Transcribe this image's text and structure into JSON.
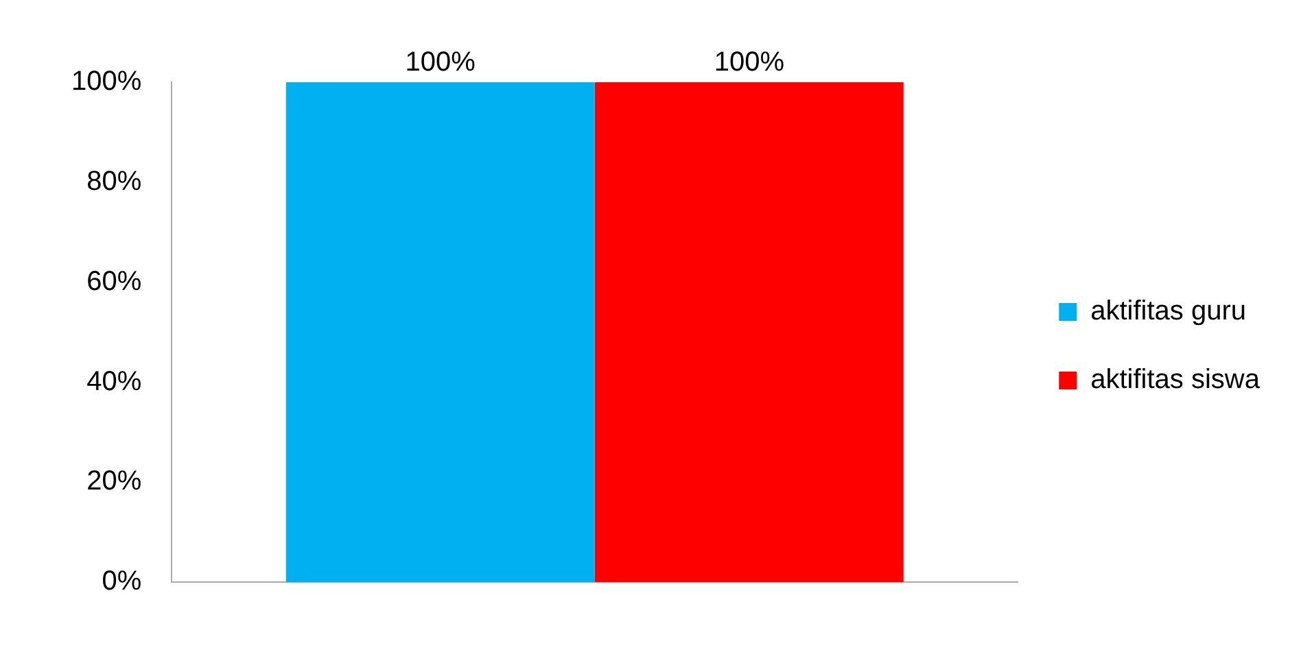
{
  "chart_data": {
    "type": "bar",
    "categories": [
      null
    ],
    "series": [
      {
        "name": "aktifitas guru",
        "color": "#00b0f0",
        "values": [
          100
        ],
        "value_labels": [
          "100%"
        ]
      },
      {
        "name": "aktifitas siswa",
        "color": "#ff0000",
        "values": [
          100
        ],
        "value_labels": [
          "100%"
        ]
      }
    ],
    "ylim": [
      0,
      100
    ],
    "yticks": [
      {
        "value": 0,
        "label": "0%"
      },
      {
        "value": 20,
        "label": "20%"
      },
      {
        "value": 40,
        "label": "40%"
      },
      {
        "value": 60,
        "label": "60%"
      },
      {
        "value": 80,
        "label": "80%"
      },
      {
        "value": 100,
        "label": "100%"
      }
    ],
    "grid": false,
    "legend": "right"
  }
}
